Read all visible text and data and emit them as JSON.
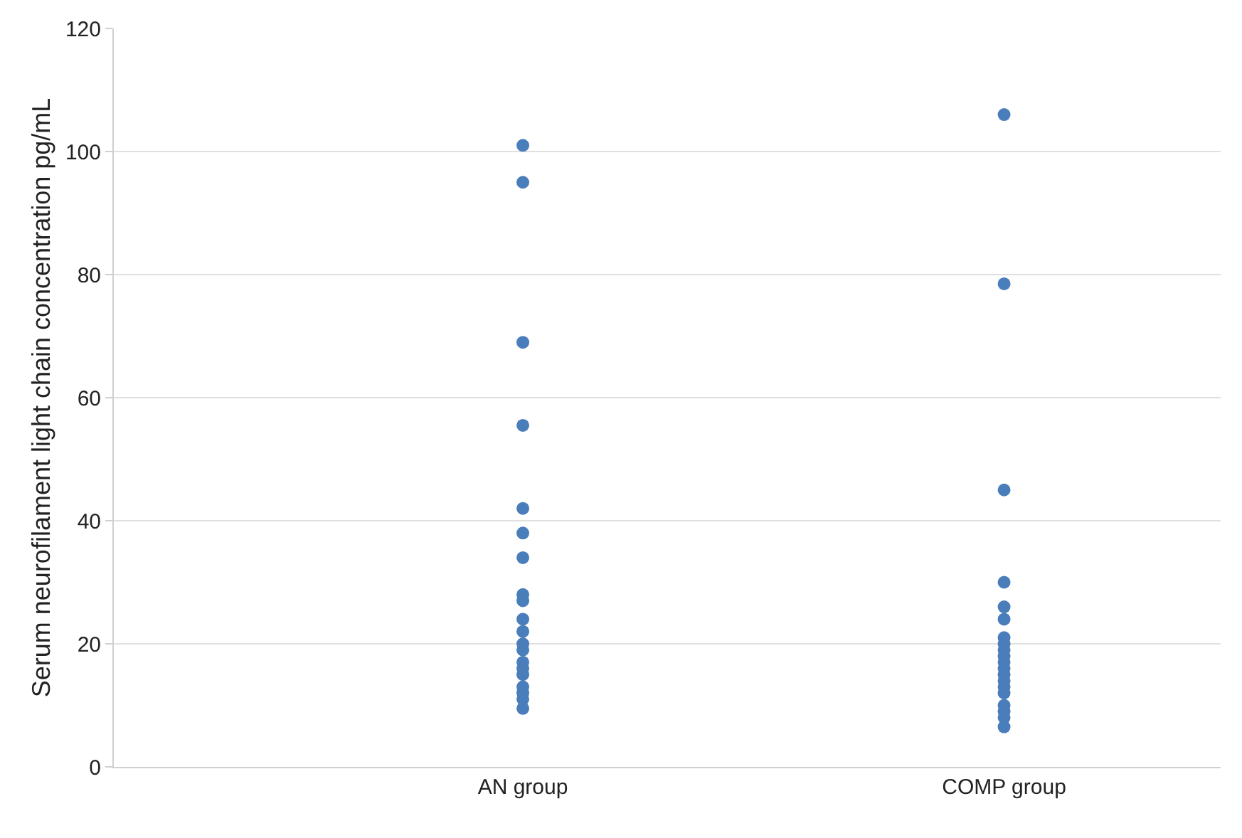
{
  "chart_data": {
    "type": "scatter",
    "ylabel": "Serum neurofilament light chain concentration pg/mL",
    "categories": [
      "AN group",
      "COMP group"
    ],
    "series": [
      {
        "color": "#4a7ebb",
        "x": [
          "AN group",
          "AN group",
          "AN group",
          "AN group",
          "AN group",
          "AN group",
          "AN group",
          "AN group",
          "AN group",
          "AN group",
          "AN group",
          "AN group",
          "AN group",
          "AN group",
          "AN group",
          "AN group",
          "AN group",
          "AN group",
          "AN group",
          "AN group"
        ],
        "values": [
          101,
          95,
          69,
          55.5,
          42,
          38,
          34,
          28,
          27,
          24,
          22,
          20,
          19,
          17,
          16,
          15,
          13,
          12,
          11,
          9.5
        ]
      },
      {
        "color": "#4a7ebb",
        "x": [
          "COMP group",
          "COMP group",
          "COMP group",
          "COMP group",
          "COMP group",
          "COMP group",
          "COMP group",
          "COMP group",
          "COMP group",
          "COMP group",
          "COMP group",
          "COMP group",
          "COMP group",
          "COMP group",
          "COMP group",
          "COMP group",
          "COMP group",
          "COMP group",
          "COMP group",
          "COMP group"
        ],
        "values": [
          106,
          78.5,
          45,
          30,
          26,
          24,
          21,
          20,
          19,
          18,
          17,
          16,
          15,
          14,
          13,
          12,
          10,
          9,
          8,
          6.5
        ]
      }
    ],
    "ylim": [
      0,
      120
    ],
    "yticks": [
      0,
      20,
      40,
      60,
      80,
      100,
      120
    ],
    "grid": "y",
    "legend": false,
    "marker": "circle"
  }
}
